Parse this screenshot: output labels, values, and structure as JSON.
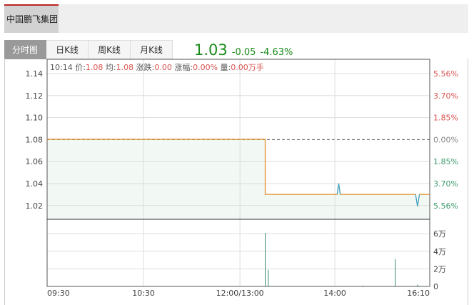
{
  "header": {
    "stock_name": "中国鹏飞集团"
  },
  "tabs": [
    {
      "label": "分时图",
      "active": true
    },
    {
      "label": "日K线"
    },
    {
      "label": "周K线"
    },
    {
      "label": "月K线"
    }
  ],
  "quote": {
    "price": "1.03",
    "change": "-0.05",
    "change_pct": "-4.63%",
    "color": "#1a8a1a"
  },
  "info": {
    "time": "10:14",
    "price_label": "价:",
    "price": "1.08",
    "avg_label": "均:",
    "avg": "1.08",
    "chg_label": "涨跌:",
    "chg": "0.00",
    "pct_label": "涨幅:",
    "pct": "0.00%",
    "vol_label": "量:",
    "vol": "0.00万手"
  },
  "chart_data": {
    "type": "line",
    "prev_close": 1.08,
    "price_ticks": [
      "1.14",
      "1.12",
      "1.10",
      "1.08",
      "1.06",
      "1.04",
      "1.02"
    ],
    "pct_ticks": [
      {
        "label": "5.56%",
        "color": "#d9534f"
      },
      {
        "label": "3.70%",
        "color": "#d9534f"
      },
      {
        "label": "1.85%",
        "color": "#d9534f"
      },
      {
        "label": "0.00%",
        "color": "#888888"
      },
      {
        "label": "1.85%",
        "color": "#3a9a6a"
      },
      {
        "label": "3.70%",
        "color": "#3a9a6a"
      },
      {
        "label": "5.56%",
        "color": "#3a9a6a"
      }
    ],
    "volume_ticks": [
      "6万",
      "4万",
      "2万",
      "0"
    ],
    "x_ticks": [
      "09:30",
      "10:30",
      "12:00/13:00",
      "14:00",
      "16:10"
    ],
    "price_series": [
      [
        0,
        1.08
      ],
      [
        0.57,
        1.08
      ],
      [
        0.57,
        1.03
      ],
      [
        0.758,
        1.03
      ],
      [
        0.762,
        1.04
      ],
      [
        0.766,
        1.03
      ],
      [
        0.963,
        1.03
      ],
      [
        0.968,
        1.019
      ],
      [
        0.973,
        1.03
      ],
      [
        1,
        1.03
      ]
    ],
    "volume_series": [
      [
        0.57,
        6.1
      ],
      [
        0.578,
        1.9
      ],
      [
        0.825,
        0.1
      ],
      [
        0.91,
        3.1
      ],
      [
        0.968,
        0.2
      ]
    ],
    "colors": {
      "price_line": "#e0902a",
      "spike": "#39a9d9",
      "fill": "#f2f8f4",
      "volume": "#3a8a6a"
    }
  }
}
